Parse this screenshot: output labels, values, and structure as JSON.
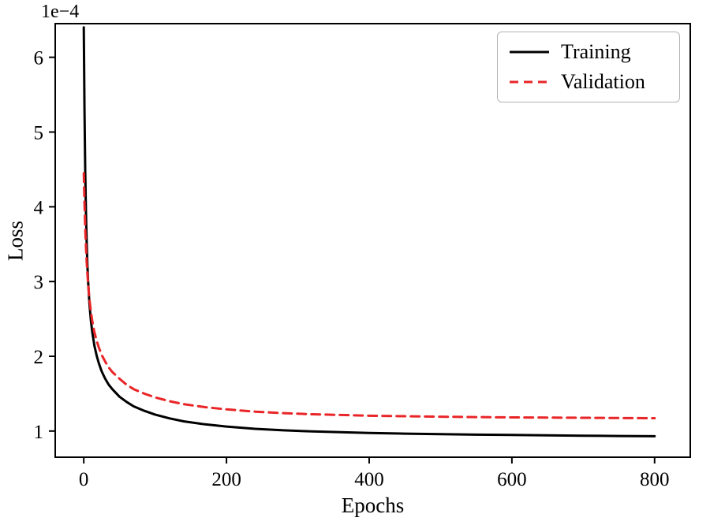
{
  "chart_data": {
    "type": "line",
    "title": "",
    "xlabel": "Epochs",
    "ylabel": "Loss",
    "y_offset_label": "1e−4",
    "xlim": [
      -40,
      850
    ],
    "ylim": [
      0.65,
      6.45
    ],
    "x_ticks": [
      0,
      200,
      400,
      600,
      800
    ],
    "y_ticks": [
      1,
      2,
      3,
      4,
      5,
      6
    ],
    "grid": false,
    "legend_position": "upper right",
    "frame_color": "#000000",
    "series": [
      {
        "name": "Training",
        "color": "#000000",
        "style": "solid",
        "line_width": 3,
        "x": [
          0,
          1,
          2,
          3,
          4,
          5,
          6,
          8,
          10,
          12,
          15,
          18,
          21,
          25,
          30,
          35,
          40,
          50,
          60,
          70,
          85,
          100,
          120,
          140,
          170,
          200,
          240,
          280,
          320,
          360,
          400,
          450,
          500,
          550,
          600,
          650,
          700,
          750,
          800
        ],
        "y": [
          6.4,
          5.3,
          4.5,
          3.95,
          3.55,
          3.25,
          3.02,
          2.7,
          2.48,
          2.32,
          2.14,
          2.01,
          1.91,
          1.8,
          1.7,
          1.62,
          1.56,
          1.46,
          1.39,
          1.33,
          1.27,
          1.22,
          1.17,
          1.13,
          1.09,
          1.06,
          1.03,
          1.01,
          0.995,
          0.985,
          0.975,
          0.965,
          0.958,
          0.952,
          0.947,
          0.942,
          0.938,
          0.934,
          0.93
        ]
      },
      {
        "name": "Validation",
        "color": "#e92528",
        "style": "dashed",
        "line_width": 3,
        "x": [
          0,
          1,
          2,
          3,
          4,
          5,
          6,
          8,
          10,
          12,
          15,
          18,
          21,
          25,
          30,
          35,
          40,
          50,
          60,
          70,
          85,
          100,
          120,
          140,
          170,
          200,
          240,
          280,
          320,
          360,
          400,
          450,
          500,
          550,
          600,
          650,
          700,
          750,
          800
        ],
        "y": [
          4.45,
          4.05,
          3.72,
          3.48,
          3.28,
          3.12,
          2.98,
          2.76,
          2.6,
          2.47,
          2.32,
          2.21,
          2.12,
          2.02,
          1.93,
          1.85,
          1.79,
          1.7,
          1.62,
          1.56,
          1.5,
          1.45,
          1.4,
          1.36,
          1.32,
          1.29,
          1.26,
          1.24,
          1.225,
          1.215,
          1.205,
          1.198,
          1.192,
          1.187,
          1.183,
          1.18,
          1.177,
          1.174,
          1.172
        ]
      }
    ]
  }
}
